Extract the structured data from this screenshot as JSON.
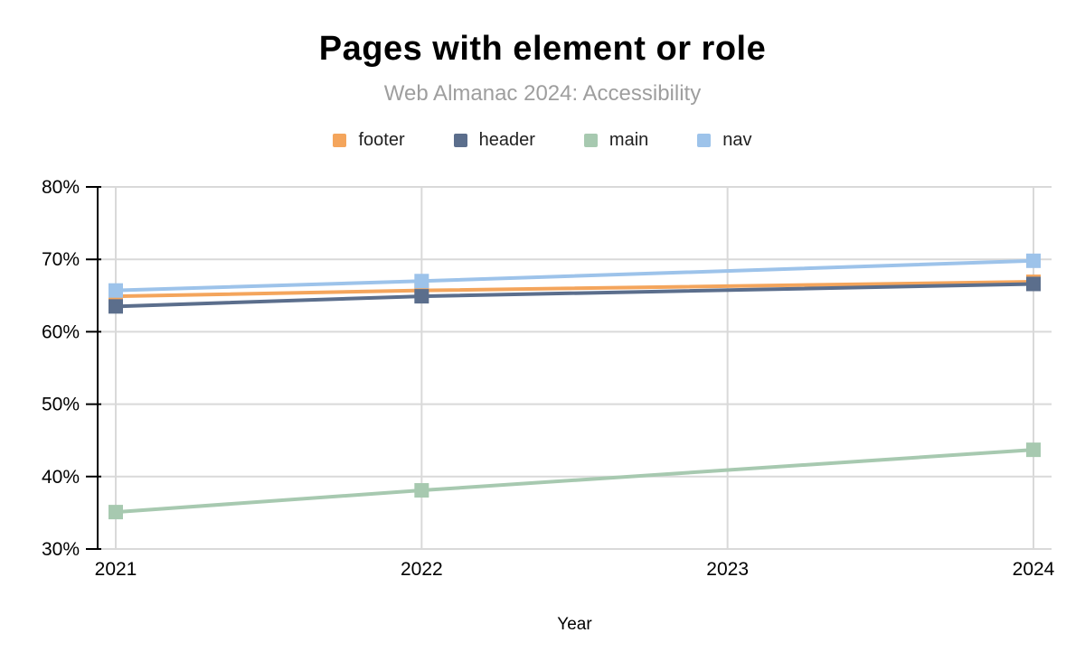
{
  "page": {
    "background": "#ffffff"
  },
  "chart_data": {
    "type": "line",
    "title": "Pages with element or role",
    "subtitle": "Web Almanac 2024: Accessibility",
    "xlabel": "Year",
    "ylabel": "",
    "x": [
      2021,
      2022,
      2024
    ],
    "x_ticks": [
      2021,
      2022,
      2023,
      2024
    ],
    "y_ticks": [
      80,
      70,
      60,
      50,
      40,
      30
    ],
    "y_tick_suffix": "%",
    "xlim": [
      2021,
      2024
    ],
    "ylim": [
      30,
      80
    ],
    "grid": true,
    "legend_position": "top",
    "marker": "square",
    "axis_color": "#000000",
    "gridline_color": "#d9d9d9",
    "series": [
      {
        "name": "footer",
        "color": "#F4A55C",
        "values": [
          64.9,
          65.7,
          66.9
        ]
      },
      {
        "name": "header",
        "color": "#5B6E8C",
        "values": [
          63.5,
          64.9,
          66.6
        ]
      },
      {
        "name": "main",
        "color": "#A7C9B0",
        "values": [
          35.1,
          38.1,
          43.7
        ]
      },
      {
        "name": "nav",
        "color": "#9DC3EA",
        "values": [
          65.7,
          67.0,
          69.8
        ]
      }
    ]
  }
}
